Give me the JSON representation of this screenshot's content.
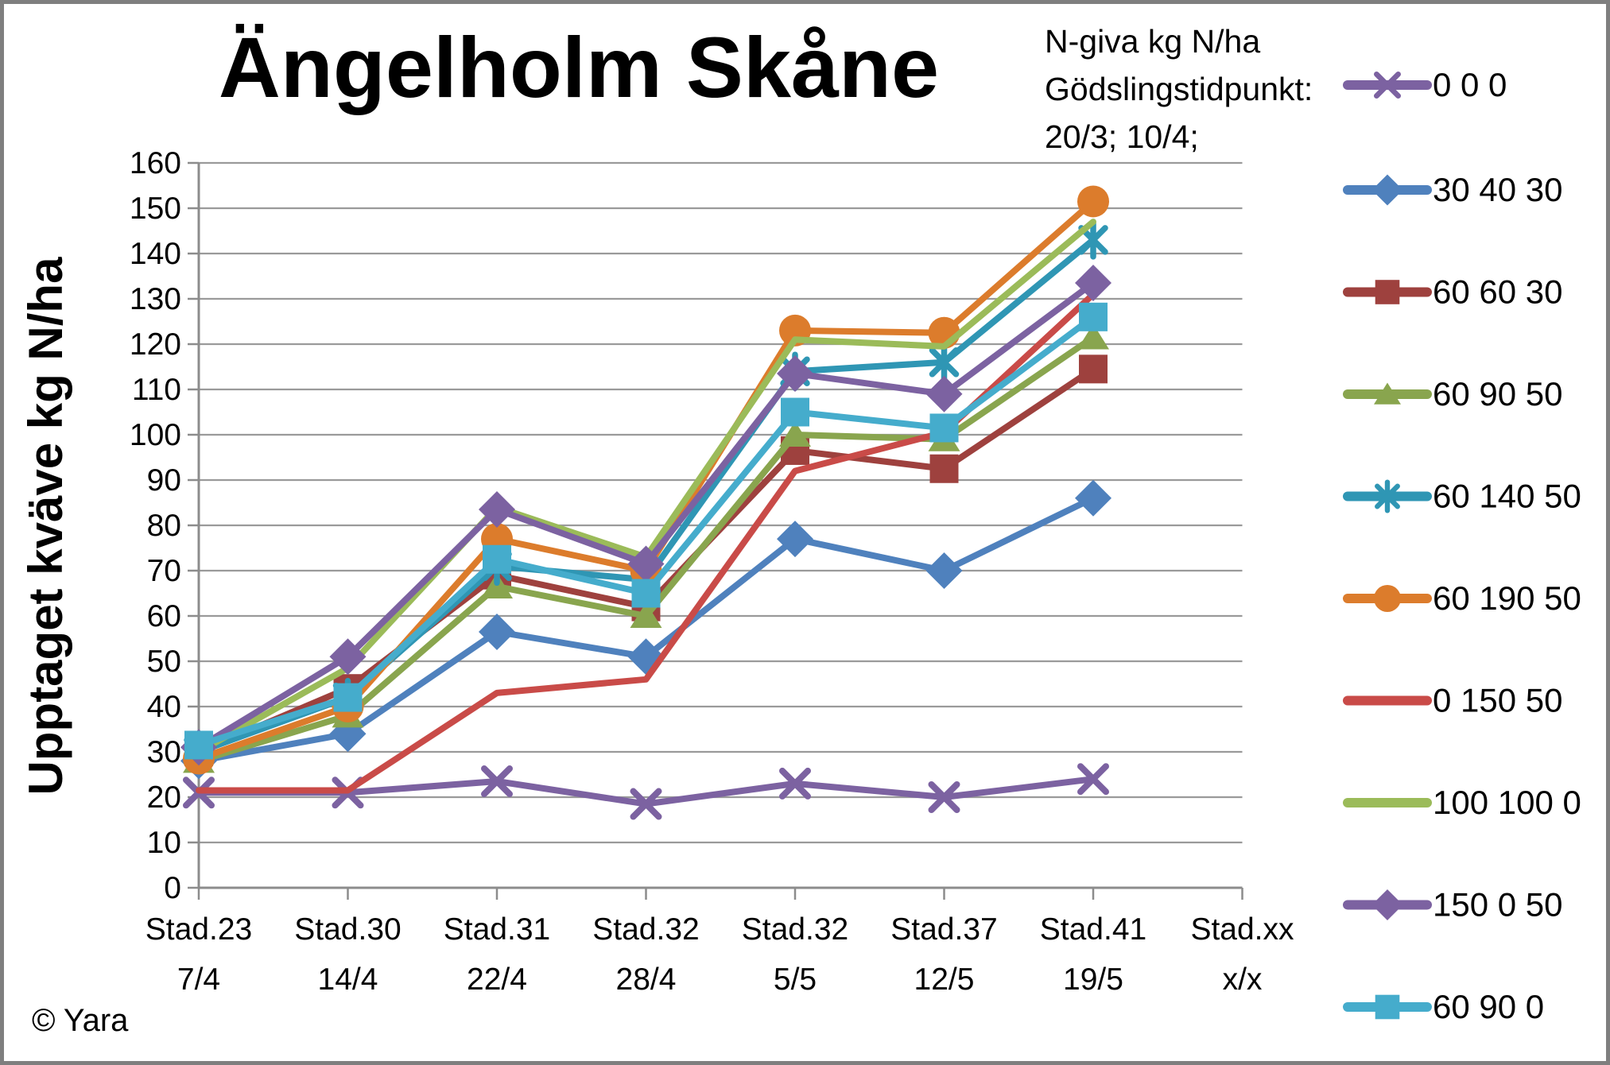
{
  "chart_data": {
    "type": "line",
    "title": "Ängelholm Skåne",
    "ylabel": "Upptaget kväve kg N/ha",
    "xlabel": "",
    "legend_header": [
      "N-giva kg N/ha",
      "Gödslingstidpunkt:",
      "20/3; 10/4;"
    ],
    "copyright": "© Yara",
    "ylim": [
      0,
      160
    ],
    "y_ticks": [
      0,
      10,
      20,
      30,
      40,
      50,
      60,
      70,
      80,
      90,
      100,
      110,
      120,
      130,
      140,
      150,
      160
    ],
    "grid": true,
    "legend_position": "right",
    "categories": [
      {
        "stage": "Stad.23",
        "date": "7/4"
      },
      {
        "stage": "Stad.30",
        "date": "14/4"
      },
      {
        "stage": "Stad.31",
        "date": "22/4"
      },
      {
        "stage": "Stad.32",
        "date": "28/4"
      },
      {
        "stage": "Stad.32",
        "date": "5/5"
      },
      {
        "stage": "Stad.37",
        "date": "12/5"
      },
      {
        "stage": "Stad.41",
        "date": "19/5"
      },
      {
        "stage": "Stad.xx",
        "date": "x/x"
      }
    ],
    "series": [
      {
        "name": "0 0 0",
        "color": "#7C62A1",
        "marker": "x",
        "values": [
          21,
          21,
          23.5,
          18.5,
          23,
          20,
          24
        ]
      },
      {
        "name": "30 40 30",
        "color": "#4F81BD",
        "marker": "diamond",
        "values": [
          28,
          34,
          56.5,
          51,
          77,
          70,
          86
        ]
      },
      {
        "name": "60 60 30",
        "color": "#9E413E",
        "marker": "square",
        "values": [
          30,
          44,
          69,
          62,
          96.5,
          92.5,
          114.5
        ]
      },
      {
        "name": "60 90 50",
        "color": "#89A54E",
        "marker": "triangle",
        "values": [
          28,
          38,
          66.5,
          60,
          100,
          99,
          121.5
        ]
      },
      {
        "name": "60 140 50",
        "color": "#2F96B4",
        "marker": "asterisk",
        "values": [
          30,
          42,
          71,
          68,
          114,
          116,
          143
        ]
      },
      {
        "name": "60 190 50",
        "color": "#DC7C2C",
        "marker": "circle",
        "values": [
          28.5,
          40,
          77,
          70,
          123,
          122.5,
          151.5
        ]
      },
      {
        "name": "0 150 50",
        "color": "#C94B48",
        "marker": "none",
        "values": [
          21.5,
          21.5,
          43,
          46,
          92,
          100.5,
          131
        ]
      },
      {
        "name": "100 100 0",
        "color": "#9BBB59",
        "marker": "none",
        "values": [
          30,
          48.5,
          84,
          73,
          121,
          119.5,
          147
        ]
      },
      {
        "name": "150 0 50",
        "color": "#7C62A1",
        "marker": "diamond",
        "values": [
          31,
          51,
          83.5,
          71.5,
          113.5,
          109,
          133.5
        ]
      },
      {
        "name": "60 90 0",
        "color": "#45ACCC",
        "marker": "square",
        "values": [
          31.5,
          42,
          72.5,
          65,
          105,
          101.5,
          126
        ]
      }
    ],
    "axis_color": "#8C8C8C",
    "grid_color": "#9A9A9A",
    "border_color": "#7F7F7F"
  }
}
